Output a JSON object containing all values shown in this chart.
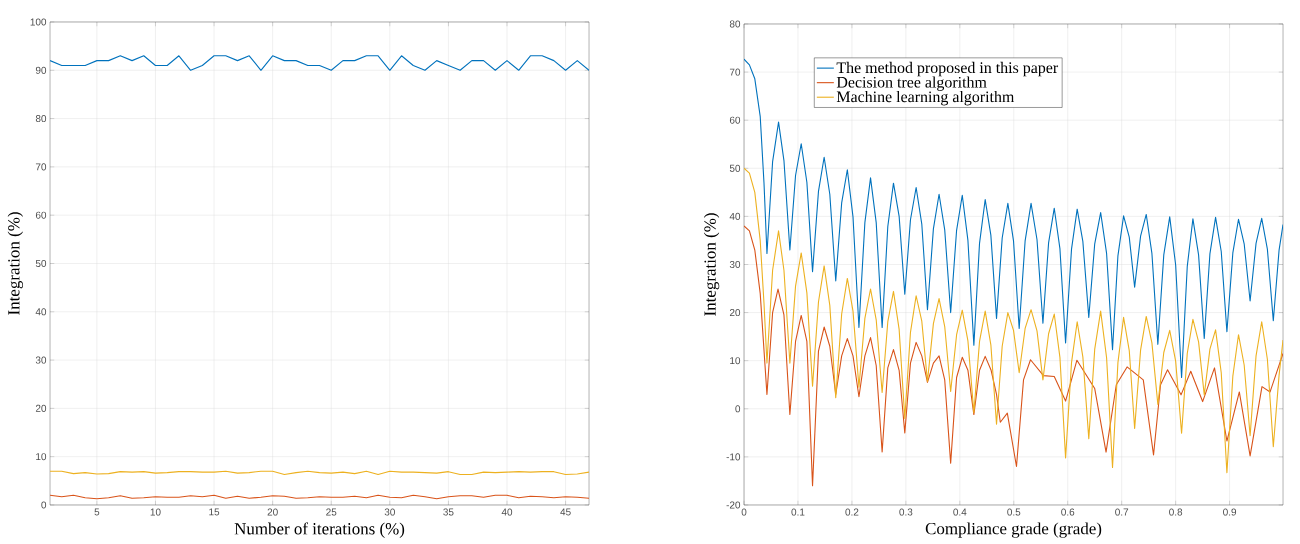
{
  "chart_data": [
    {
      "type": "line",
      "xlabel": "Number of iterations (%)",
      "ylabel": "Integration (%)",
      "xlim": [
        1,
        47
      ],
      "xticks": [
        5,
        10,
        15,
        20,
        25,
        30,
        35,
        40,
        45
      ],
      "ylim": [
        0,
        100
      ],
      "yticks": [
        0,
        10,
        20,
        30,
        40,
        50,
        60,
        70,
        80,
        90,
        100
      ],
      "grid": true,
      "x": [
        1,
        2,
        3,
        4,
        5,
        6,
        7,
        8,
        9,
        10,
        11,
        12,
        13,
        14,
        15,
        16,
        17,
        18,
        19,
        20,
        21,
        22,
        23,
        24,
        25,
        26,
        27,
        28,
        29,
        30,
        31,
        32,
        33,
        34,
        35,
        36,
        37,
        38,
        39,
        40,
        41,
        42,
        43,
        44,
        45,
        46,
        47
      ],
      "series": [
        {
          "color": "#0072bd",
          "values": [
            92,
            91,
            91,
            91,
            92,
            92,
            93,
            92,
            93,
            91,
            91,
            93,
            90,
            91,
            93,
            93,
            92,
            93,
            90,
            93,
            92,
            92,
            91,
            91,
            90,
            92,
            92,
            93,
            93,
            90,
            93,
            91,
            90,
            92,
            91,
            90,
            92,
            92,
            90,
            92,
            90,
            93,
            93,
            92,
            90,
            92,
            90
          ]
        },
        {
          "color": "#d95319",
          "values": [
            2.0,
            1.7,
            2.0,
            1.5,
            1.3,
            1.5,
            1.9,
            1.4,
            1.5,
            1.7,
            1.6,
            1.6,
            1.9,
            1.7,
            2.0,
            1.4,
            1.8,
            1.4,
            1.6,
            1.9,
            1.8,
            1.4,
            1.5,
            1.7,
            1.6,
            1.6,
            1.8,
            1.5,
            2.0,
            1.6,
            1.5,
            2.0,
            1.7,
            1.3,
            1.7,
            1.9,
            1.9,
            1.6,
            2.0,
            2.0,
            1.5,
            1.8,
            1.7,
            1.5,
            1.7,
            1.6,
            1.4
          ]
        },
        {
          "color": "#edb120",
          "values": [
            7.0,
            7.0,
            6.5,
            6.7,
            6.4,
            6.5,
            6.9,
            6.8,
            6.9,
            6.6,
            6.7,
            6.9,
            6.9,
            6.8,
            6.8,
            7.0,
            6.6,
            6.7,
            7.0,
            7.0,
            6.3,
            6.7,
            7.0,
            6.7,
            6.6,
            6.8,
            6.5,
            7.0,
            6.3,
            7.0,
            6.8,
            6.8,
            6.7,
            6.6,
            6.9,
            6.3,
            6.3,
            6.8,
            6.7,
            6.8,
            6.9,
            6.8,
            6.9,
            6.9,
            6.3,
            6.4,
            6.8
          ]
        }
      ]
    },
    {
      "type": "line",
      "xlabel": "Compliance grade (grade)",
      "ylabel": "Integration (%)",
      "xlim": [
        0,
        0.999
      ],
      "xticks": [
        0,
        0.1,
        0.2,
        0.3,
        0.4,
        0.5,
        0.6,
        0.7,
        0.8,
        0.9
      ],
      "ylim": [
        -20,
        80
      ],
      "yticks": [
        -20,
        -10,
        0,
        10,
        20,
        30,
        40,
        50,
        60,
        70,
        80
      ],
      "grid": true,
      "legend": "top left",
      "x": [
        0,
        0.01,
        0.02,
        0.03,
        0.037,
        0.0425,
        0.053,
        0.064,
        0.074,
        0.085,
        0.0955,
        0.106,
        0.1165,
        0.127,
        0.138,
        0.1485,
        0.159,
        0.17,
        0.181,
        0.1915,
        0.202,
        0.213,
        0.224,
        0.2345,
        0.245,
        0.256,
        0.2665,
        0.277,
        0.2875,
        0.298,
        0.3085,
        0.319,
        0.3295,
        0.34,
        0.351,
        0.3615,
        0.372,
        0.383,
        0.394,
        0.4045,
        0.415,
        0.426,
        0.4365,
        0.447,
        0.4575,
        0.468,
        0.4785,
        0.489,
        0.4995,
        0.51,
        0.521,
        0.532,
        0.543,
        0.554,
        0.5645,
        0.575,
        0.5855,
        0.596,
        0.607,
        0.6175,
        0.628,
        0.639,
        0.65,
        0.661,
        0.672,
        0.683,
        0.693,
        0.7035,
        0.714,
        0.724,
        0.735,
        0.7455,
        0.756,
        0.767,
        0.778,
        0.789,
        0.8,
        0.811,
        0.8215,
        0.832,
        0.8425,
        0.853,
        0.8635,
        0.874,
        0.8845,
        0.895,
        0.906,
        0.9165,
        0.927,
        0.938,
        0.949,
        0.9595,
        0.97,
        0.981,
        0.9917,
        0.999
      ],
      "series": [
        {
          "name": "The method proposed in this paper",
          "color": "#0072bd",
          "values": [
            72.7,
            71.5,
            68.6,
            60.8,
            47,
            32.3,
            51.4,
            59.6,
            51.6,
            33.0,
            48.5,
            55.1,
            47.1,
            28.5,
            45.2,
            52.3,
            44.6,
            26.6,
            42.8,
            49.7,
            39.9,
            16.9,
            38.7,
            48,
            38.7,
            16.9,
            37.9,
            46.9,
            40.0,
            23.8,
            39.3,
            46,
            38.4,
            20.6,
            37.4,
            44.6,
            37.2,
            20.0,
            37.1,
            44.4,
            35.0,
            13.2,
            34.4,
            43.5,
            36.1,
            18.8,
            35.5,
            42.7,
            34.9,
            16.7,
            34.9,
            42.7,
            35.2,
            17.8,
            34.5,
            41.7,
            33.3,
            13.7,
            33.2,
            41.5,
            34.8,
            19.0,
            34.3,
            40.8,
            32.3,
            12.3,
            31.8,
            40.1,
            35.7,
            25.3,
            35.9,
            40.4,
            32.3,
            13.4,
            32.0,
            39.9,
            29.9,
            6.5,
            29.6,
            39.5,
            32.0,
            14.6,
            32.2,
            39.8,
            32.7,
            16.0,
            32.4,
            39.4,
            34.3,
            22.4,
            34.4,
            39.6,
            33.2,
            18.3,
            33,
            38.3
          ]
        },
        {
          "name": "Decision tree algorithm",
          "color": "#d95319",
          "x": [
            0,
            0.01,
            0.02,
            0.03,
            0.0425,
            0.053,
            0.063,
            0.074,
            0.085,
            0.0955,
            0.106,
            0.1165,
            0.127,
            0.138,
            0.1485,
            0.159,
            0.17,
            0.181,
            0.1915,
            0.202,
            0.213,
            0.224,
            0.2345,
            0.245,
            0.256,
            0.2665,
            0.277,
            0.2875,
            0.298,
            0.3085,
            0.319,
            0.3295,
            0.34,
            0.351,
            0.3615,
            0.372,
            0.383,
            0.394,
            0.4045,
            0.415,
            0.426,
            0.4365,
            0.447,
            0.458,
            0.468,
            0.475,
            0.488,
            0.505,
            0.518,
            0.531,
            0.555,
            0.575,
            0.596,
            0.617,
            0.65,
            0.671,
            0.69,
            0.71,
            0.74,
            0.759,
            0.772,
            0.785,
            0.81,
            0.828,
            0.85,
            0.872,
            0.895,
            0.918,
            0.938,
            0.96,
            0.975,
            0.999
          ],
          "values": [
            38,
            37,
            33,
            24,
            3,
            20,
            24.9,
            19.5,
            -1.2,
            14,
            19.4,
            14,
            -16,
            12,
            17,
            13,
            3,
            11,
            14.6,
            11,
            2.5,
            11,
            14.8,
            9,
            -9,
            8.5,
            12.3,
            8,
            -5,
            9.5,
            13.8,
            11,
            5.5,
            9.5,
            11,
            6,
            -11.3,
            6.5,
            10.7,
            8,
            -1.2,
            8,
            10.9,
            8,
            3,
            -2.8,
            -0.9,
            -12,
            6,
            10.2,
            6.9,
            6.7,
            1.6,
            10.1,
            4.2,
            -9,
            5,
            8.7,
            6,
            -9.6,
            5,
            8.1,
            2.9,
            7.8,
            1.5,
            8.5,
            -6.7,
            3.5,
            -9.8,
            4.6,
            3.5,
            11.5
          ]
        },
        {
          "name": "Machine learning algorithm",
          "color": "#edb120",
          "values": [
            50,
            49,
            45,
            35,
            22,
            9.5,
            28.8,
            37.0,
            28.8,
            9.5,
            25.5,
            32.4,
            24.1,
            4.7,
            22.2,
            29.7,
            21.5,
            2.3,
            19.7,
            27.1,
            20.3,
            4.5,
            18.8,
            24.9,
            18.5,
            3.4,
            18.1,
            24.4,
            16.5,
            -2,
            15.9,
            23.5,
            18.2,
            5.7,
            17.7,
            22.9,
            17.1,
            3.6,
            15.4,
            20.5,
            14.1,
            -0.8,
            14.0,
            20.3,
            13.3,
            -3.2,
            13.0,
            20.0,
            16.3,
            7.5,
            16.7,
            20.6,
            16.2,
            6.0,
            15.6,
            19.7,
            10.7,
            -10.2,
            9.6,
            18.1,
            10.8,
            -6.2,
            12.4,
            20.3,
            10.6,
            -12.2,
            9.6,
            19.0,
            12.1,
            -4.1,
            12.2,
            19.2,
            13.7,
            0.9,
            11.7,
            16.3,
            9.9,
            -5.1,
            11.5,
            18.6,
            13.9,
            2.9,
            12.4,
            16.4,
            7.5,
            -13.3,
            6.8,
            15.4,
            9.1,
            -5.6,
            11.0,
            18.1,
            10.3,
            -7.9,
            7,
            14.3
          ]
        }
      ]
    }
  ]
}
